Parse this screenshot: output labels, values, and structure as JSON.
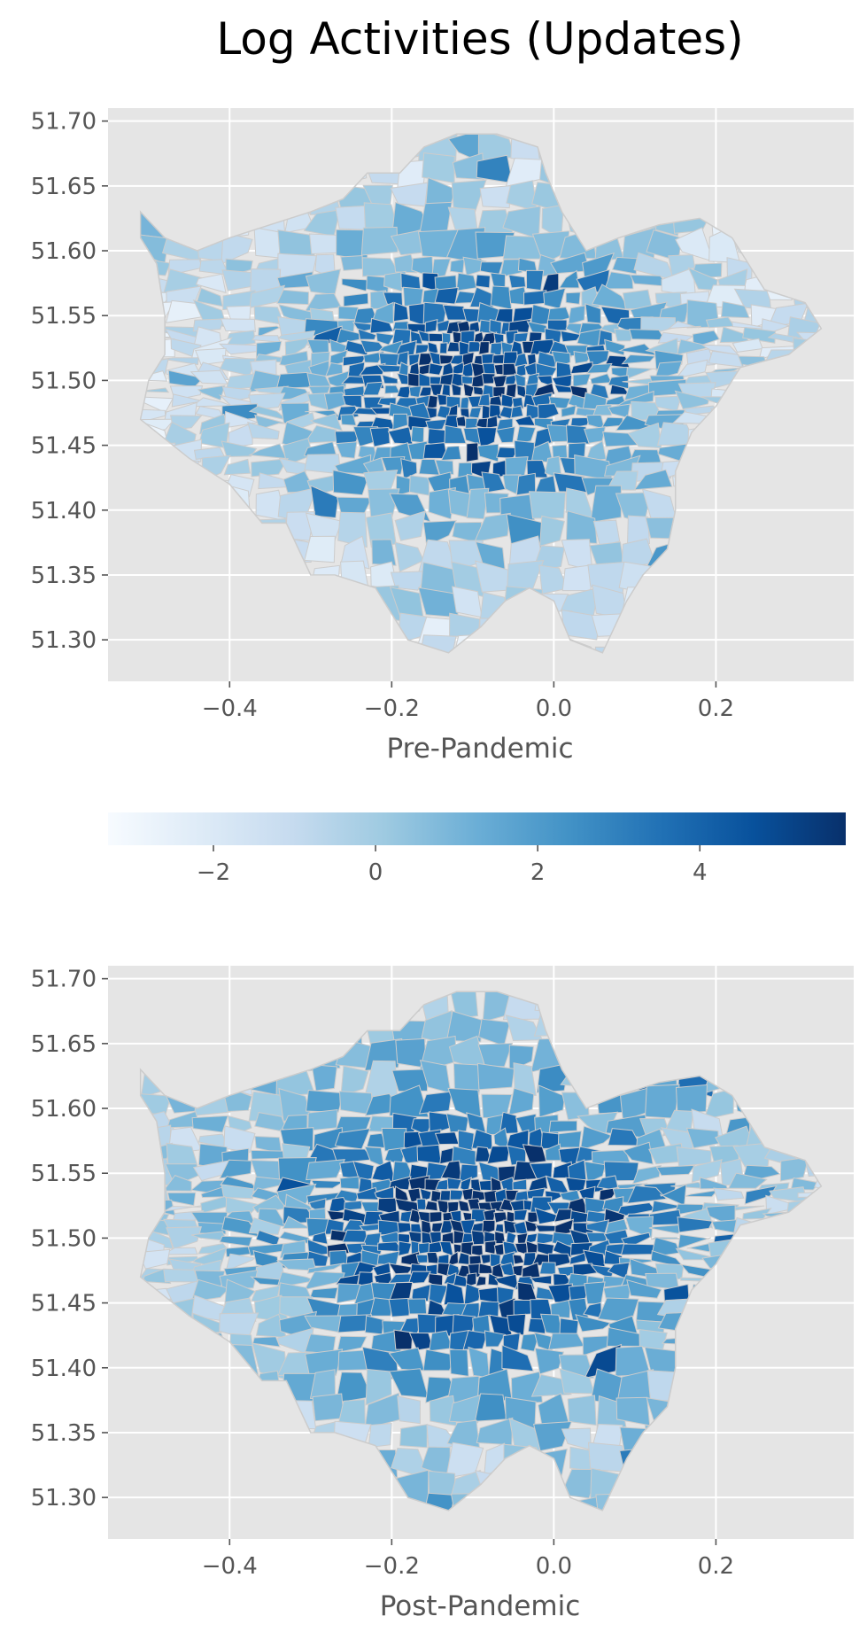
{
  "figure": {
    "title": "Log Activities (Updates)"
  },
  "chart_data": [
    {
      "type": "heatmap",
      "subtype": "choropleth",
      "xlabel": "Pre-Pandemic",
      "ylabel": "",
      "xlim": [
        -0.55,
        0.37
      ],
      "ylim": [
        51.268,
        51.71
      ],
      "x_ticks": [
        "−0.4",
        "−0.2",
        "0.0",
        "0.2"
      ],
      "x_tick_values": [
        -0.4,
        -0.2,
        0.0,
        0.2
      ],
      "y_ticks": [
        "51.30",
        "51.35",
        "51.40",
        "51.45",
        "51.50",
        "51.55",
        "51.60",
        "51.65",
        "51.70"
      ],
      "y_tick_values": [
        51.3,
        51.35,
        51.4,
        51.45,
        51.5,
        51.55,
        51.6,
        51.65,
        51.7
      ],
      "grid": true,
      "cmap": "Blues",
      "edgecolor": "#cccccc"
    },
    {
      "type": "heatmap",
      "subtype": "choropleth",
      "xlabel": "Post-Pandemic",
      "ylabel": "",
      "xlim": [
        -0.55,
        0.37
      ],
      "ylim": [
        51.268,
        51.71
      ],
      "x_ticks": [
        "−0.4",
        "−0.2",
        "0.0",
        "0.2"
      ],
      "x_tick_values": [
        -0.4,
        -0.2,
        0.0,
        0.2
      ],
      "y_ticks": [
        "51.30",
        "51.35",
        "51.40",
        "51.45",
        "51.50",
        "51.55",
        "51.60",
        "51.65",
        "51.70"
      ],
      "y_tick_values": [
        51.3,
        51.35,
        51.4,
        51.45,
        51.5,
        51.55,
        51.6,
        51.65,
        51.7
      ],
      "grid": true,
      "cmap": "Blues",
      "edgecolor": "#cccccc"
    }
  ],
  "colorbar": {
    "range": [
      -3.3,
      5.8
    ],
    "ticks": [
      "−2",
      "0",
      "2",
      "4"
    ],
    "tick_values": [
      -2,
      0,
      2,
      4
    ],
    "cmap": "Blues",
    "colors": [
      "#f7fbff",
      "#deebf7",
      "#c6dbef",
      "#9ecae1",
      "#6baed6",
      "#4292c6",
      "#2171b5",
      "#08519c",
      "#08306b"
    ]
  }
}
